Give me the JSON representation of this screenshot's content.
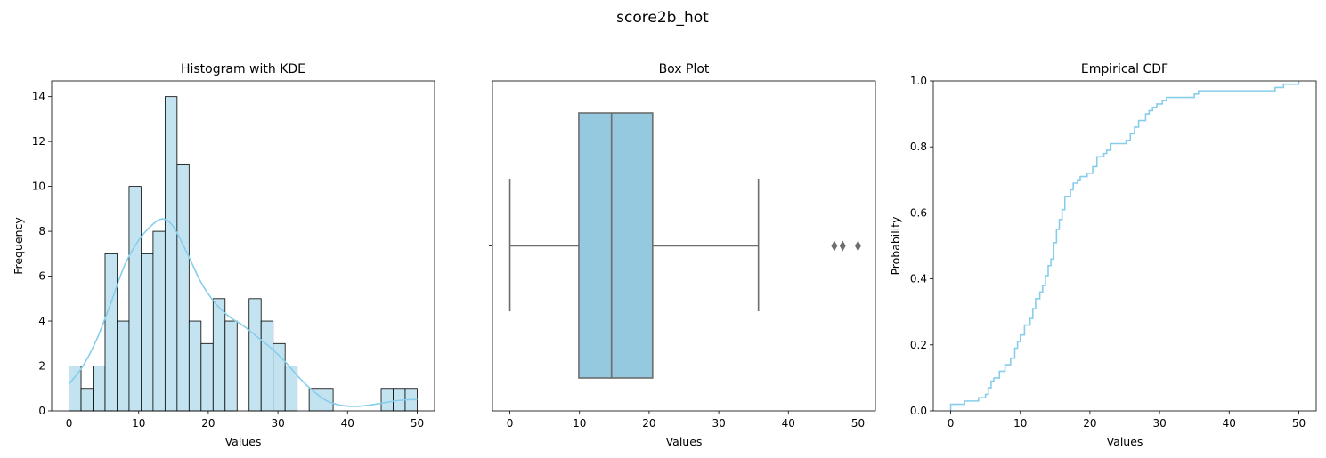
{
  "figure": {
    "suptitle": "score2b_hot"
  },
  "colors": {
    "bar_fill": "#c3e3f0",
    "bar_edge": "#000000",
    "kde": "#87ceeb",
    "box_fill": "#95c9df",
    "box_edge": "#6d6d6d",
    "cdf": "#87ceeb"
  },
  "chart_data": [
    {
      "type": "bar",
      "subtype": "histogram_with_kde",
      "title": "Histogram with KDE",
      "xlabel": "Values",
      "ylabel": "Frequency",
      "xlim": [
        -2.5,
        52.5
      ],
      "ylim": [
        0,
        14.7
      ],
      "xticks": [
        0,
        10,
        20,
        30,
        40,
        50
      ],
      "yticks": [
        0,
        2,
        4,
        6,
        8,
        10,
        12,
        14
      ],
      "bins": {
        "start": 0,
        "width": 1.7241,
        "counts": [
          2,
          1,
          2,
          7,
          4,
          10,
          7,
          8,
          14,
          11,
          4,
          3,
          5,
          4,
          0,
          5,
          4,
          3,
          2,
          0,
          1,
          1,
          0,
          0,
          0,
          0,
          1,
          1,
          1
        ]
      },
      "kde": {
        "x": [
          0,
          2,
          4,
          6,
          8,
          10,
          12,
          13.5,
          15,
          17,
          19,
          21,
          23,
          25,
          27,
          29,
          31,
          33,
          35,
          37,
          39,
          41,
          43,
          45,
          47,
          49,
          50
        ],
        "y": [
          1.2,
          2.0,
          3.2,
          4.8,
          6.5,
          7.6,
          8.3,
          8.55,
          8.2,
          7.0,
          5.7,
          4.8,
          4.2,
          3.8,
          3.3,
          2.8,
          2.2,
          1.5,
          0.9,
          0.45,
          0.25,
          0.2,
          0.25,
          0.35,
          0.45,
          0.5,
          0.5
        ]
      }
    },
    {
      "type": "box",
      "title": "Box Plot",
      "xlabel": "Values",
      "xlim": [
        -2.5,
        52.5
      ],
      "xticks": [
        0,
        10,
        20,
        30,
        40,
        50
      ],
      "whisker_low": 0,
      "q1": 9.9,
      "median": 14.6,
      "q3": 20.5,
      "whisker_high": 35.7,
      "outliers": [
        46.6,
        47.8,
        50
      ]
    },
    {
      "type": "line",
      "subtype": "ecdf",
      "title": "Empirical CDF",
      "xlabel": "Values",
      "ylabel": "Probability",
      "xlim": [
        -2.5,
        52.5
      ],
      "ylim": [
        0,
        1
      ],
      "xticks": [
        0,
        10,
        20,
        30,
        40,
        50
      ],
      "yticks": [
        0.0,
        0.2,
        0.4,
        0.6,
        0.8,
        1.0
      ],
      "points": [
        [
          0,
          0.02
        ],
        [
          2,
          0.03
        ],
        [
          4,
          0.04
        ],
        [
          5,
          0.05
        ],
        [
          5.4,
          0.07
        ],
        [
          5.8,
          0.09
        ],
        [
          6.2,
          0.1
        ],
        [
          7,
          0.12
        ],
        [
          7.8,
          0.14
        ],
        [
          8.6,
          0.16
        ],
        [
          9.2,
          0.19
        ],
        [
          9.6,
          0.21
        ],
        [
          10,
          0.23
        ],
        [
          10.6,
          0.26
        ],
        [
          11.4,
          0.28
        ],
        [
          11.8,
          0.31
        ],
        [
          12.2,
          0.34
        ],
        [
          12.8,
          0.36
        ],
        [
          13.2,
          0.38
        ],
        [
          13.6,
          0.41
        ],
        [
          14,
          0.44
        ],
        [
          14.4,
          0.46
        ],
        [
          14.8,
          0.51
        ],
        [
          15.2,
          0.55
        ],
        [
          15.6,
          0.58
        ],
        [
          16,
          0.61
        ],
        [
          16.4,
          0.65
        ],
        [
          17.2,
          0.67
        ],
        [
          17.6,
          0.69
        ],
        [
          18.2,
          0.7
        ],
        [
          18.6,
          0.71
        ],
        [
          19.6,
          0.72
        ],
        [
          20.4,
          0.74
        ],
        [
          21,
          0.77
        ],
        [
          22,
          0.78
        ],
        [
          22.4,
          0.79
        ],
        [
          23,
          0.81
        ],
        [
          25.2,
          0.82
        ],
        [
          25.8,
          0.84
        ],
        [
          26.4,
          0.86
        ],
        [
          27,
          0.88
        ],
        [
          28,
          0.9
        ],
        [
          28.5,
          0.91
        ],
        [
          29,
          0.92
        ],
        [
          29.6,
          0.93
        ],
        [
          30.4,
          0.94
        ],
        [
          31,
          0.95
        ],
        [
          35,
          0.96
        ],
        [
          35.6,
          0.97
        ],
        [
          46.6,
          0.98
        ],
        [
          47.8,
          0.99
        ],
        [
          50,
          1.0
        ]
      ]
    }
  ]
}
